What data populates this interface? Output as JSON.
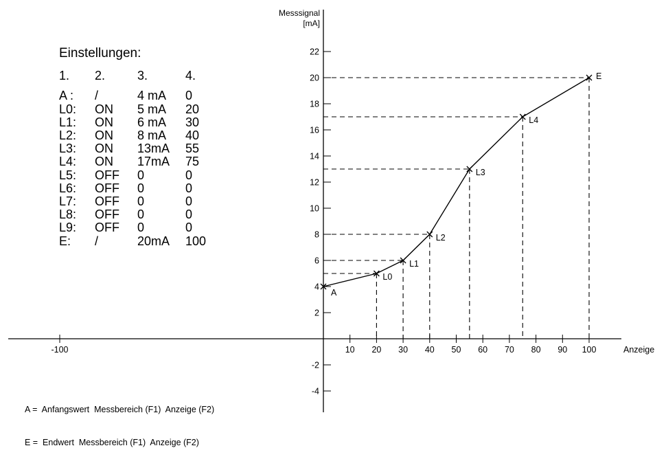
{
  "settings": {
    "title": "Einstellungen:",
    "headers": [
      "1.",
      "2.",
      "3.",
      "4."
    ],
    "rows": [
      [
        "A :",
        "/",
        "4 mA",
        "0"
      ],
      [
        "L0:",
        "ON",
        "5 mA",
        "20"
      ],
      [
        "L1:",
        "ON",
        "6 mA",
        "30"
      ],
      [
        "L2:",
        "ON",
        "8 mA",
        "40"
      ],
      [
        "L3:",
        "ON",
        "13mA",
        "55"
      ],
      [
        "L4:",
        "ON",
        "17mA",
        "75"
      ],
      [
        "L5:",
        "OFF",
        "0",
        "0"
      ],
      [
        "L6:",
        "OFF",
        "0",
        "0"
      ],
      [
        "L7:",
        "OFF",
        "0",
        "0"
      ],
      [
        "L8:",
        "OFF",
        "0",
        "0"
      ],
      [
        "L9:",
        "OFF",
        "0",
        "0"
      ],
      [
        "E:",
        "/",
        "20mA",
        "100"
      ]
    ]
  },
  "legend": {
    "line_a": "A =  Anfangswert  Messbereich (F1)  Anzeige (F2)",
    "line_e": "E =  Endwert  Messbereich (F1)  Anzeige (F2)"
  },
  "chart_data": {
    "type": "line",
    "xlabel": "Anzeige",
    "ylabel_line1": "Messsignal",
    "ylabel_line2": "[mA]",
    "xlim": [
      -110,
      110
    ],
    "ylim": [
      -5,
      23
    ],
    "x_ticks": [
      10,
      20,
      30,
      40,
      50,
      60,
      70,
      80,
      90,
      100
    ],
    "x_tick_labels": [
      "10",
      "20",
      "30",
      "40",
      "50",
      "60",
      "70",
      "80",
      "90",
      "100"
    ],
    "x_extra_tick": {
      "value": -100,
      "label": "-100"
    },
    "y_ticks": [
      -4,
      -2,
      2,
      4,
      6,
      8,
      10,
      12,
      14,
      16,
      18,
      20,
      22
    ],
    "y_tick_labels": [
      "-4",
      "-2",
      "2",
      "4",
      "6",
      "8",
      "10",
      "12",
      "14",
      "16",
      "18",
      "20",
      "22"
    ],
    "grid": false,
    "points": [
      {
        "label": "A",
        "x": 0,
        "y": 4
      },
      {
        "label": "L0",
        "x": 20,
        "y": 5
      },
      {
        "label": "L1",
        "x": 30,
        "y": 6
      },
      {
        "label": "L2",
        "x": 40,
        "y": 8
      },
      {
        "label": "L3",
        "x": 55,
        "y": 13
      },
      {
        "label": "L4",
        "x": 75,
        "y": 17
      },
      {
        "label": "E",
        "x": 100,
        "y": 20
      }
    ],
    "dashed_guides": true
  }
}
